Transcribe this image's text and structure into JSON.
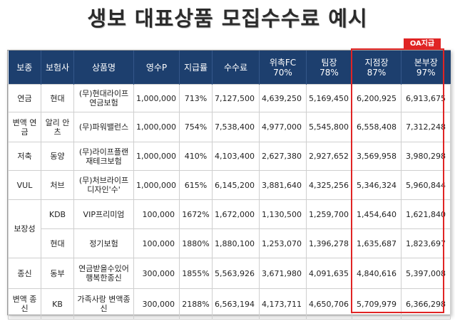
{
  "title": "생보 대표상품 모집수수료 예시",
  "badge": "OA지급",
  "headers": {
    "type": "보종",
    "insurer": "보험사",
    "product": "상품명",
    "premium": "영수P",
    "rate": "지급률",
    "commission": "수수료",
    "ga_line1": "위촉FC",
    "ga_line2": "70%",
    "team_line1": "팀장",
    "team_line2": "78%",
    "branch_line1": "지점장",
    "branch_line2": "87%",
    "hq_line1": "본부장",
    "hq_line2": "97%"
  },
  "rows": [
    {
      "type": "연금",
      "insurer": "현대",
      "product": "(무)현대라이프 연금보험",
      "premium": "1,000,000",
      "rate": "713%",
      "commission": "7,127,500",
      "ga": "4,639,250",
      "team": "5,169,450",
      "branch": "6,200,925",
      "hq": "6,913,675"
    },
    {
      "type": "변액 연금",
      "insurer": "알리 안츠",
      "product": "(무)파워밸런스",
      "premium": "1,000,000",
      "rate": "754%",
      "commission": "7,538,400",
      "ga": "4,977,000",
      "team": "5,545,800",
      "branch": "6,558,408",
      "hq": "7,312,248"
    },
    {
      "type": "저축",
      "insurer": "동양",
      "product": "(무)라이프플랜 재테크보험",
      "premium": "1,000,000",
      "rate": "410%",
      "commission": "4,103,400",
      "ga": "2,627,380",
      "team": "2,927,652",
      "branch": "3,569,958",
      "hq": "3,980,298"
    },
    {
      "type": "VUL",
      "insurer": "처브",
      "product": "(무)처브라이프 디자인'수'",
      "premium": "1,000,000",
      "rate": "615%",
      "commission": "6,145,200",
      "ga": "3,881,640",
      "team": "4,325,256",
      "branch": "5,346,324",
      "hq": "5,960,844"
    },
    {
      "type": "보장성",
      "insurer": "KDB",
      "product": "VIP프리미엄",
      "premium": "100,000",
      "rate": "1672%",
      "commission": "1,672,000",
      "ga": "1,130,500",
      "team": "1,259,700",
      "branch": "1,454,640",
      "hq": "1,621,840"
    },
    {
      "type": "",
      "insurer": "현대",
      "product": "정기보험",
      "premium": "100,000",
      "rate": "1880%",
      "commission": "1,880,100",
      "ga": "1,253,070",
      "team": "1,396,278",
      "branch": "1,635,687",
      "hq": "1,823,697"
    },
    {
      "type": "종신",
      "insurer": "동부",
      "product": "연금받을수있어 행복한종신",
      "premium": "300,000",
      "rate": "1855%",
      "commission": "5,563,926",
      "ga": "3,671,980",
      "team": "4,091,635",
      "branch": "4,840,616",
      "hq": "5,397,008"
    },
    {
      "type": "변액 종신",
      "insurer": "KB",
      "product": "가족사랑 변액종신",
      "premium": "300,000",
      "rate": "2188%",
      "commission": "6,563,194",
      "ga": "4,173,711",
      "team": "4,650,706",
      "branch": "5,709,979",
      "hq": "6,366,298"
    }
  ],
  "colors": {
    "header_bg": "#1d3f6e",
    "highlight": "#e02424"
  }
}
